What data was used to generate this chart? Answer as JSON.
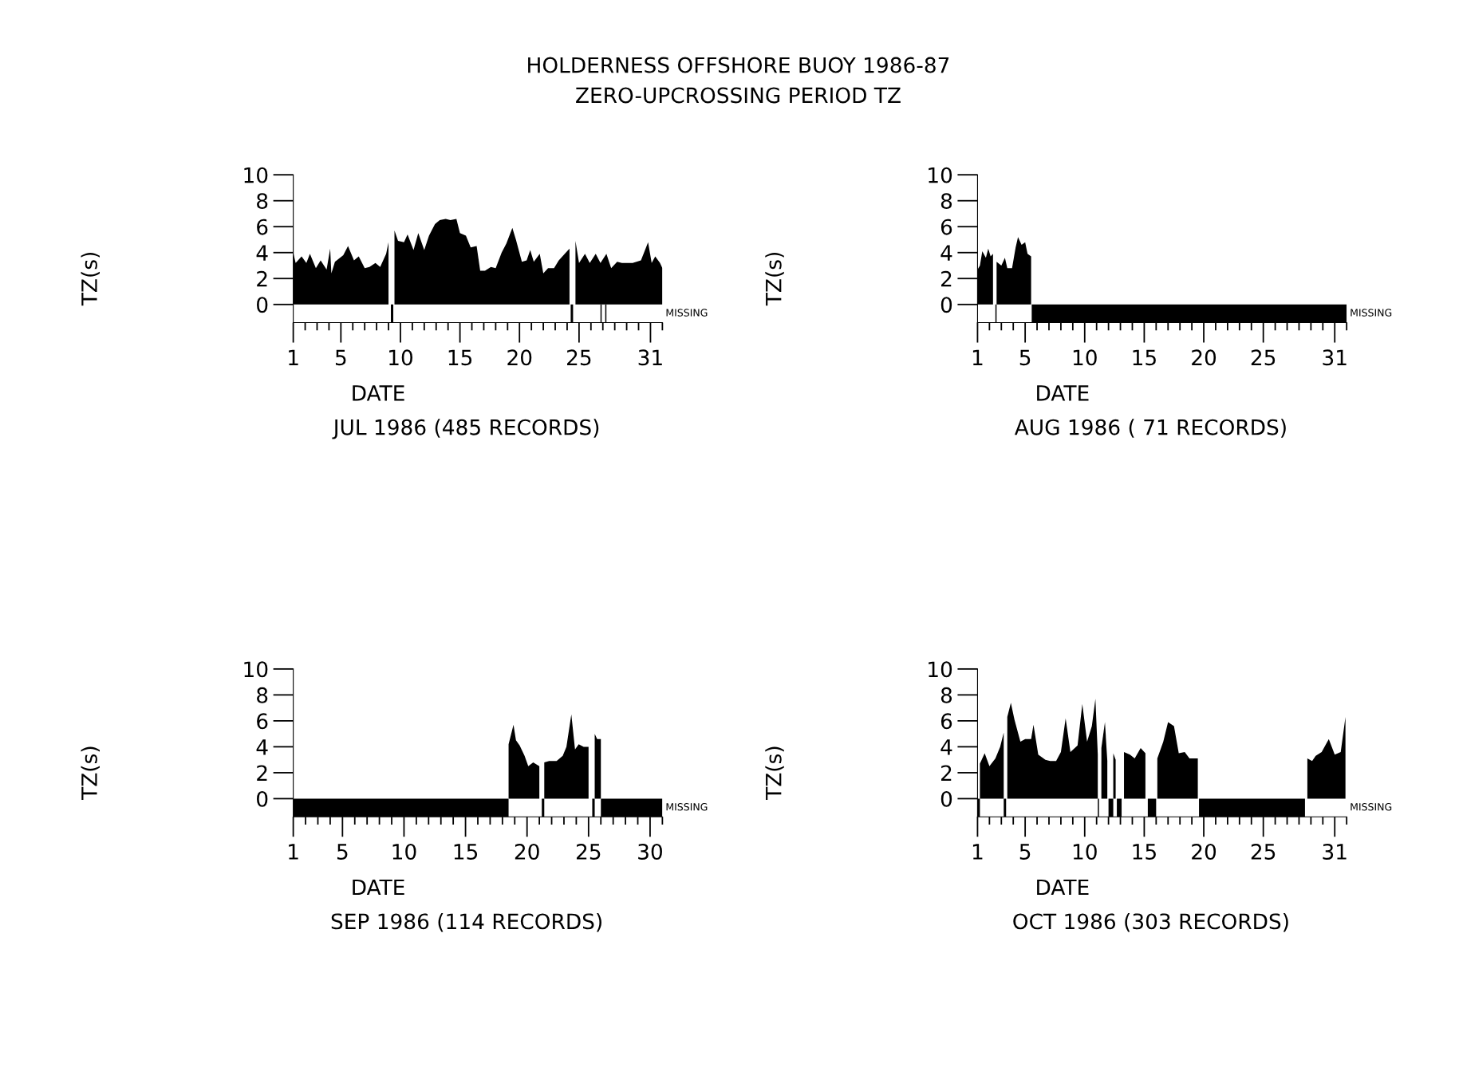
{
  "chart_data": [
    {
      "type": "area",
      "title": "HOLDERNESS OFFSHORE BUOY 1986-87",
      "subtitle": "ZERO-UPCROSSING PERIOD TZ",
      "xlabel": "DATE",
      "ylabel": "TZ(s)",
      "annotations": [
        "MISSING",
        "JUL 1986 (485 RECORDS)"
      ],
      "color": "#000000",
      "grid": false,
      "legend": false,
      "x": [
        1.0,
        1.2,
        1.7,
        2.1,
        2.4,
        2.9,
        3.3,
        3.8,
        4.1,
        4.2,
        4.5,
        5.2,
        5.6,
        6.1,
        6.5,
        7.0,
        7.4,
        7.9,
        8.3,
        8.8,
        9.0,
        9.3,
        9.5,
        9.8,
        10.3,
        10.6,
        11.1,
        11.5,
        12.0,
        12.4,
        12.9,
        13.3,
        13.8,
        14.2,
        14.7,
        15.0,
        15.5,
        15.9,
        16.4,
        16.7,
        17.1,
        17.6,
        18.0,
        18.5,
        18.9,
        19.4,
        19.7,
        20.2,
        20.6,
        20.9,
        21.2,
        21.7,
        22.0,
        22.4,
        22.9,
        23.3,
        23.8,
        24.2,
        24.4,
        24.7,
        25.0,
        25.5,
        25.9,
        26.4,
        26.8,
        27.3,
        27.7,
        28.2,
        28.6,
        29.1,
        29.5,
        30.2,
        30.8,
        31.1,
        31.4,
        31.8,
        32.0
      ],
      "values": [
        4.0,
        3.2,
        3.7,
        3.2,
        3.9,
        2.8,
        3.4,
        2.7,
        4.3,
        2.4,
        3.3,
        3.8,
        4.5,
        3.4,
        3.7,
        2.8,
        2.9,
        3.2,
        2.9,
        3.9,
        4.8,
        null,
        5.7,
        4.9,
        4.8,
        5.4,
        4.2,
        5.5,
        4.2,
        5.3,
        6.2,
        6.5,
        6.6,
        6.5,
        6.6,
        5.5,
        5.3,
        4.4,
        4.5,
        2.6,
        2.6,
        2.9,
        2.8,
        4.0,
        4.7,
        5.9,
        5.0,
        3.3,
        3.4,
        4.2,
        3.3,
        3.9,
        2.4,
        2.8,
        2.8,
        3.4,
        3.9,
        4.3,
        null,
        4.9,
        3.2,
        3.9,
        3.2,
        3.9,
        3.2,
        3.9,
        2.8,
        3.3,
        3.2,
        3.2,
        3.2,
        3.4,
        4.8,
        3.2,
        3.7,
        3.2,
        2.8
      ],
      "bands": [
        {
          "axis": "x",
          "from": 9.2,
          "to": 9.4,
          "color": "#000000"
        },
        {
          "axis": "x",
          "from": 24.3,
          "to": 24.5,
          "color": "#000000"
        },
        {
          "axis": "x",
          "from": 26.8,
          "to": 26.9,
          "color": "#000000"
        },
        {
          "axis": "x",
          "from": 27.2,
          "to": 27.3,
          "color": "#000000"
        }
      ],
      "xlim": [
        1,
        32
      ],
      "ylim": [
        -1.4,
        10
      ],
      "xticks": [
        1,
        {
          "value": 2,
          "label": null
        },
        {
          "value": 3,
          "label": null
        },
        {
          "value": 4,
          "label": null
        },
        5,
        {
          "value": 6,
          "label": null
        },
        {
          "value": 7,
          "label": null
        },
        {
          "value": 8,
          "label": null
        },
        {
          "value": 9,
          "label": null
        },
        10,
        {
          "value": 11,
          "label": null
        },
        {
          "value": 12,
          "label": null
        },
        {
          "value": 13,
          "label": null
        },
        {
          "value": 14,
          "label": null
        },
        15,
        {
          "value": 16,
          "label": null
        },
        {
          "value": 17,
          "label": null
        },
        {
          "value": 18,
          "label": null
        },
        {
          "value": 19,
          "label": null
        },
        20,
        {
          "value": 21,
          "label": null
        },
        {
          "value": 22,
          "label": null
        },
        {
          "value": 23,
          "label": null
        },
        {
          "value": 24,
          "label": null
        },
        25,
        {
          "value": 26,
          "label": null
        },
        {
          "value": 27,
          "label": null
        },
        {
          "value": 28,
          "label": null
        },
        {
          "value": 29,
          "label": null
        },
        {
          "value": 30,
          "label": null
        },
        31,
        {
          "value": 32,
          "label": null
        }
      ],
      "yticks": [
        0,
        2,
        4,
        6,
        8,
        10
      ]
    },
    {
      "type": "area",
      "xlabel": "DATE",
      "ylabel": "TZ(s)",
      "annotations": [
        "MISSING",
        "AUG 1986 ( 71 RECORDS)"
      ],
      "color": "#000000",
      "grid": false,
      "legend": false,
      "x": [
        1.0,
        1.2,
        1.4,
        1.7,
        1.9,
        2.1,
        2.3,
        2.5,
        2.6,
        3.0,
        3.3,
        3.5,
        3.9,
        4.2,
        4.4,
        4.7,
        5.0,
        5.2,
        5.5
      ],
      "values": [
        2.7,
        3.0,
        4.1,
        3.6,
        4.3,
        3.7,
        3.9,
        null,
        3.3,
        3.0,
        3.6,
        2.8,
        2.8,
        4.4,
        5.2,
        4.6,
        4.8,
        3.9,
        3.7
      ],
      "bands": [
        {
          "axis": "x",
          "from": 2.5,
          "to": 2.6,
          "color": "#000000"
        },
        {
          "axis": "x",
          "from": 5.55,
          "to": 32,
          "color": "#000000"
        }
      ],
      "xlim": [
        1,
        32
      ],
      "ylim": [
        -1.4,
        10
      ],
      "xticks": [
        1,
        {
          "value": 2,
          "label": null
        },
        {
          "value": 3,
          "label": null
        },
        {
          "value": 4,
          "label": null
        },
        5,
        {
          "value": 6,
          "label": null
        },
        {
          "value": 7,
          "label": null
        },
        {
          "value": 8,
          "label": null
        },
        {
          "value": 9,
          "label": null
        },
        10,
        {
          "value": 11,
          "label": null
        },
        {
          "value": 12,
          "label": null
        },
        {
          "value": 13,
          "label": null
        },
        {
          "value": 14,
          "label": null
        },
        15,
        {
          "value": 16,
          "label": null
        },
        {
          "value": 17,
          "label": null
        },
        {
          "value": 18,
          "label": null
        },
        {
          "value": 19,
          "label": null
        },
        20,
        {
          "value": 21,
          "label": null
        },
        {
          "value": 22,
          "label": null
        },
        {
          "value": 23,
          "label": null
        },
        {
          "value": 24,
          "label": null
        },
        25,
        {
          "value": 26,
          "label": null
        },
        {
          "value": 27,
          "label": null
        },
        {
          "value": 28,
          "label": null
        },
        {
          "value": 29,
          "label": null
        },
        {
          "value": 30,
          "label": null
        },
        31,
        {
          "value": 32,
          "label": null
        }
      ],
      "yticks": [
        0,
        2,
        4,
        6,
        8,
        10
      ]
    },
    {
      "type": "area",
      "xlabel": "DATE",
      "ylabel": "TZ(s)",
      "annotations": [
        "MISSING",
        "SEP 1986 (114 RECORDS)"
      ],
      "color": "#000000",
      "grid": false,
      "legend": false,
      "x": [
        18.5,
        18.9,
        19.1,
        19.4,
        19.8,
        20.1,
        20.5,
        21.0,
        21.3,
        21.4,
        21.8,
        22.4,
        22.9,
        23.2,
        23.6,
        23.9,
        24.2,
        24.6,
        25.0,
        25.3,
        25.5,
        25.7,
        26.0
      ],
      "values": [
        4.2,
        5.7,
        4.5,
        4.1,
        3.3,
        2.5,
        2.8,
        2.5,
        null,
        2.8,
        2.9,
        2.9,
        3.3,
        4.0,
        6.5,
        3.8,
        4.2,
        4.0,
        4.0,
        null,
        5.0,
        4.6,
        4.6
      ],
      "bands": [
        {
          "axis": "x",
          "from": 1,
          "to": 18.5,
          "color": "#000000"
        },
        {
          "axis": "x",
          "from": 21.2,
          "to": 21.4,
          "color": "#000000"
        },
        {
          "axis": "x",
          "from": 25.3,
          "to": 25.5,
          "color": "#000000"
        },
        {
          "axis": "x",
          "from": 26.0,
          "to": 31,
          "color": "#000000"
        }
      ],
      "xlim": [
        1,
        31
      ],
      "ylim": [
        -1.4,
        10
      ],
      "xticks": [
        1,
        {
          "value": 2,
          "label": null
        },
        {
          "value": 3,
          "label": null
        },
        {
          "value": 4,
          "label": null
        },
        5,
        {
          "value": 6,
          "label": null
        },
        {
          "value": 7,
          "label": null
        },
        {
          "value": 8,
          "label": null
        },
        {
          "value": 9,
          "label": null
        },
        10,
        {
          "value": 11,
          "label": null
        },
        {
          "value": 12,
          "label": null
        },
        {
          "value": 13,
          "label": null
        },
        {
          "value": 14,
          "label": null
        },
        15,
        {
          "value": 16,
          "label": null
        },
        {
          "value": 17,
          "label": null
        },
        {
          "value": 18,
          "label": null
        },
        {
          "value": 19,
          "label": null
        },
        20,
        {
          "value": 21,
          "label": null
        },
        {
          "value": 22,
          "label": null
        },
        {
          "value": 23,
          "label": null
        },
        {
          "value": 24,
          "label": null
        },
        25,
        {
          "value": 26,
          "label": null
        },
        {
          "value": 27,
          "label": null
        },
        {
          "value": 28,
          "label": null
        },
        {
          "value": 29,
          "label": null
        },
        30,
        {
          "value": 31,
          "label": null
        }
      ],
      "yticks": [
        0,
        2,
        4,
        6,
        8,
        10
      ]
    },
    {
      "type": "area",
      "xlabel": "DATE",
      "ylabel": "TZ(s)",
      "annotations": [
        "MISSING",
        "OCT 1986 (303 RECORDS)"
      ],
      "color": "#000000",
      "grid": false,
      "legend": false,
      "x": [
        1.2,
        1.6,
        2.0,
        2.5,
        2.9,
        3.2,
        3.3,
        3.5,
        3.8,
        4.1,
        4.6,
        5.0,
        5.5,
        5.7,
        6.1,
        6.7,
        7.1,
        7.6,
        8.0,
        8.4,
        8.8,
        9.4,
        9.8,
        10.2,
        10.6,
        10.9,
        11.1,
        11.2,
        11.4,
        11.7,
        11.9,
        12.2,
        12.4,
        12.6,
        12.9,
        13.3,
        13.8,
        14.2,
        14.7,
        15.1,
        15.6,
        16.1,
        16.6,
        17.0,
        17.5,
        17.9,
        18.4,
        18.8,
        19.5,
        24.0,
        28.7,
        29.1,
        29.4,
        29.9,
        30.5,
        31.0,
        31.5,
        31.9
      ],
      "values": [
        2.7,
        3.5,
        2.5,
        3.1,
        4.0,
        5.1,
        null,
        6.3,
        7.4,
        6.1,
        4.4,
        4.6,
        4.6,
        5.7,
        3.4,
        3.0,
        2.9,
        2.9,
        3.6,
        6.2,
        3.6,
        4.1,
        7.3,
        4.4,
        5.6,
        7.7,
        3.4,
        null,
        3.9,
        5.9,
        2.9,
        null,
        3.5,
        3.0,
        null,
        3.6,
        3.4,
        3.1,
        3.9,
        3.5,
        null,
        3.1,
        4.4,
        5.9,
        5.6,
        3.5,
        3.6,
        3.1,
        3.1,
        null,
        3.1,
        2.9,
        3.3,
        3.6,
        4.6,
        3.4,
        3.6,
        6.3
      ],
      "bands": [
        {
          "axis": "x",
          "from": 1.0,
          "to": 1.2,
          "color": "#000000"
        },
        {
          "axis": "x",
          "from": 3.2,
          "to": 3.4,
          "color": "#000000"
        },
        {
          "axis": "x",
          "from": 11.1,
          "to": 11.2,
          "color": "#000000"
        },
        {
          "axis": "x",
          "from": 12.0,
          "to": 12.4,
          "color": "#000000"
        },
        {
          "axis": "x",
          "from": 12.7,
          "to": 13.1,
          "color": "#000000"
        },
        {
          "axis": "x",
          "from": 15.3,
          "to": 16.0,
          "color": "#000000"
        },
        {
          "axis": "x",
          "from": 19.6,
          "to": 28.5,
          "color": "#000000"
        }
      ],
      "xlim": [
        1,
        32
      ],
      "ylim": [
        -1.4,
        10
      ],
      "xticks": [
        1,
        {
          "value": 2,
          "label": null
        },
        {
          "value": 3,
          "label": null
        },
        {
          "value": 4,
          "label": null
        },
        5,
        {
          "value": 6,
          "label": null
        },
        {
          "value": 7,
          "label": null
        },
        {
          "value": 8,
          "label": null
        },
        {
          "value": 9,
          "label": null
        },
        10,
        {
          "value": 11,
          "label": null
        },
        {
          "value": 12,
          "label": null
        },
        {
          "value": 13,
          "label": null
        },
        {
          "value": 14,
          "label": null
        },
        15,
        {
          "value": 16,
          "label": null
        },
        {
          "value": 17,
          "label": null
        },
        {
          "value": 18,
          "label": null
        },
        {
          "value": 19,
          "label": null
        },
        20,
        {
          "value": 21,
          "label": null
        },
        {
          "value": 22,
          "label": null
        },
        {
          "value": 23,
          "label": null
        },
        {
          "value": 24,
          "label": null
        },
        25,
        {
          "value": 26,
          "label": null
        },
        {
          "value": 27,
          "label": null
        },
        {
          "value": 28,
          "label": null
        },
        {
          "value": 29,
          "label": null
        },
        {
          "value": 30,
          "label": null
        },
        31,
        {
          "value": 32,
          "label": null
        }
      ],
      "yticks": [
        0,
        2,
        4,
        6,
        8,
        10
      ]
    }
  ]
}
